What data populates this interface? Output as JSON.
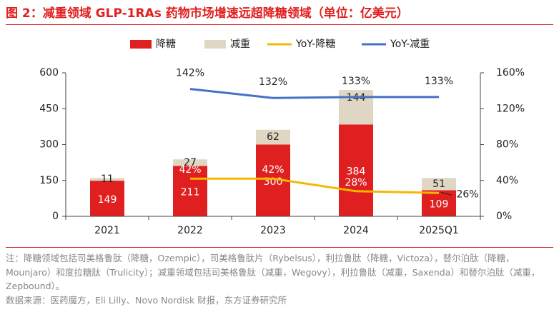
{
  "title": "图 2：减重领域 GLP-1RAs 药物市场增速远超降糖领域（单位：亿美元）",
  "notes": {
    "note": "注：降糖领域包括司美格鲁肽（降糖，Ozempic），司美格鲁肽片（Rybelsus），利拉鲁肽（降糖，Victoza），替尔泊肽（降糖，Mounjaro）和度拉糖肽（Trulicity）；减重领域包括司美格鲁肽（减重，Wegovy），利拉鲁肽（减重，Saxenda）和替尔泊肽（减重，Zepbound）。",
    "source": "数据来源：医药魔方，Eli Lilly、Novo Nordisk 财报，东方证券研究所"
  },
  "chart_data": {
    "type": "bar",
    "categories": [
      "2021",
      "2022",
      "2023",
      "2024",
      "2025Q1"
    ],
    "series": [
      {
        "name": "降糖",
        "kind": "bar",
        "values": [
          149,
          211,
          300,
          384,
          109
        ],
        "color": "#e02020",
        "label_color": "#ffffff"
      },
      {
        "name": "减重",
        "kind": "bar",
        "values": [
          11,
          27,
          62,
          144,
          51
        ],
        "color": "#e0d6c4",
        "label_color": "#222222"
      },
      {
        "name": "YoY-降糖",
        "kind": "line",
        "axis": "right",
        "values": [
          null,
          42,
          42,
          28,
          26
        ],
        "labels": [
          "",
          "42%",
          "42%",
          "28%",
          "26%"
        ],
        "color": "#f5b800",
        "label_color": "#ffffff"
      },
      {
        "name": "YoY-减重",
        "kind": "line",
        "axis": "right",
        "values": [
          null,
          142,
          132,
          133,
          133
        ],
        "labels": [
          "",
          "142%",
          "132%",
          "133%",
          "133%"
        ],
        "color": "#4472c4",
        "label_color": "#222222"
      }
    ],
    "left_axis": {
      "ylim": [
        0,
        600
      ],
      "ticks": [
        0,
        150,
        300,
        450,
        600
      ],
      "tick_labels": [
        "0",
        "150",
        "300",
        "450",
        "600"
      ]
    },
    "right_axis": {
      "ylim": [
        0,
        160
      ],
      "ticks": [
        0,
        40,
        80,
        120,
        160
      ],
      "tick_labels": [
        "0%",
        "40%",
        "80%",
        "120%",
        "160%"
      ]
    },
    "legend": {
      "position": "top"
    },
    "grid": false
  }
}
